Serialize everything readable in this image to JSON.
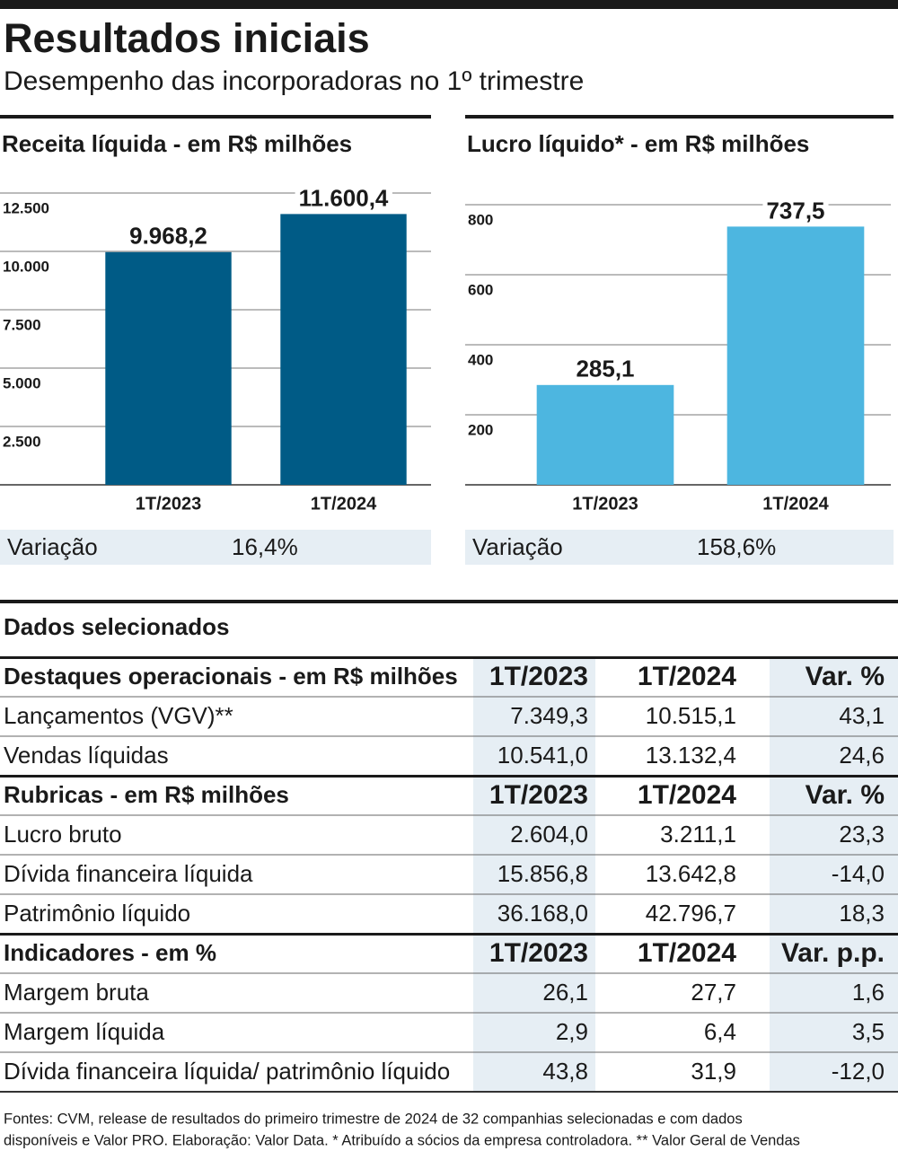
{
  "header": {
    "title": "Resultados iniciais",
    "subtitle": "Desempenho das incorporadoras no 1º trimestre"
  },
  "chart_data": [
    {
      "type": "bar",
      "title": "Receita líquida -  em R$ milhões",
      "categories": [
        "1T/2023",
        "1T/2024"
      ],
      "values": [
        9968.2,
        11600.4
      ],
      "value_labels": [
        "9.968,2",
        "11.600,4"
      ],
      "color": "#005b86",
      "ylim": [
        0,
        12500
      ],
      "yticks": [
        {
          "value": 2500,
          "label": "2.500"
        },
        {
          "value": 5000,
          "label": "5.000"
        },
        {
          "value": 7500,
          "label": "7.500"
        },
        {
          "value": 10000,
          "label": "10.000"
        },
        {
          "value": 12500,
          "label": "12.500"
        }
      ],
      "grid": true,
      "variation": {
        "label": "Variação",
        "value": "16,4%"
      }
    },
    {
      "type": "bar",
      "title": "Lucro líquido* -  em R$ milhões",
      "categories": [
        "1T/2023",
        "1T/2024"
      ],
      "values": [
        285.1,
        737.5
      ],
      "value_labels": [
        "285,1",
        "737,5"
      ],
      "color": "#4db6e0",
      "ylim": [
        0,
        800
      ],
      "yticks": [
        200,
        400,
        600,
        800
      ],
      "grid": true,
      "variation": {
        "label": "Variação",
        "value": "158,6%"
      }
    }
  ],
  "table": {
    "title": "Dados selecionados",
    "sections": [
      {
        "header": [
          "Destaques operacionais - em R$ milhões",
          "1T/2023",
          "1T/2024",
          "Var. %"
        ],
        "rows": [
          [
            "Lançamentos (VGV)**",
            "7.349,3",
            "10.515,1",
            "43,1"
          ],
          [
            "Vendas líquidas",
            "10.541,0",
            "13.132,4",
            "24,6"
          ]
        ]
      },
      {
        "header": [
          "Rubricas - em R$ milhões",
          "1T/2023",
          "1T/2024",
          "Var. %"
        ],
        "rows": [
          [
            "Lucro bruto",
            "2.604,0",
            "3.211,1",
            "23,3"
          ],
          [
            "Dívida financeira líquida",
            "15.856,8",
            "13.642,8",
            "-14,0"
          ],
          [
            "Patrimônio líquido",
            "36.168,0",
            "42.796,7",
            "18,3"
          ]
        ]
      },
      {
        "header": [
          "Indicadores - em %",
          "1T/2023",
          "1T/2024",
          "Var. p.p."
        ],
        "rows": [
          [
            "Margem bruta",
            "26,1",
            "27,7",
            "1,6"
          ],
          [
            "Margem líquida",
            "2,9",
            "6,4",
            "3,5"
          ],
          [
            "Dívida financeira líquida/ patrimônio líquido",
            "43,8",
            "31,9",
            "-12,0"
          ]
        ]
      }
    ]
  },
  "footer": [
    "Fontes: CVM, release de resultados do primeiro trimestre de 2024 de 32 companhias selecionadas e com dados",
    "disponíveis e Valor PRO. Elaboração: Valor Data. * Atribuído a sócios da empresa controladora. ** Valor Geral de Vendas"
  ]
}
